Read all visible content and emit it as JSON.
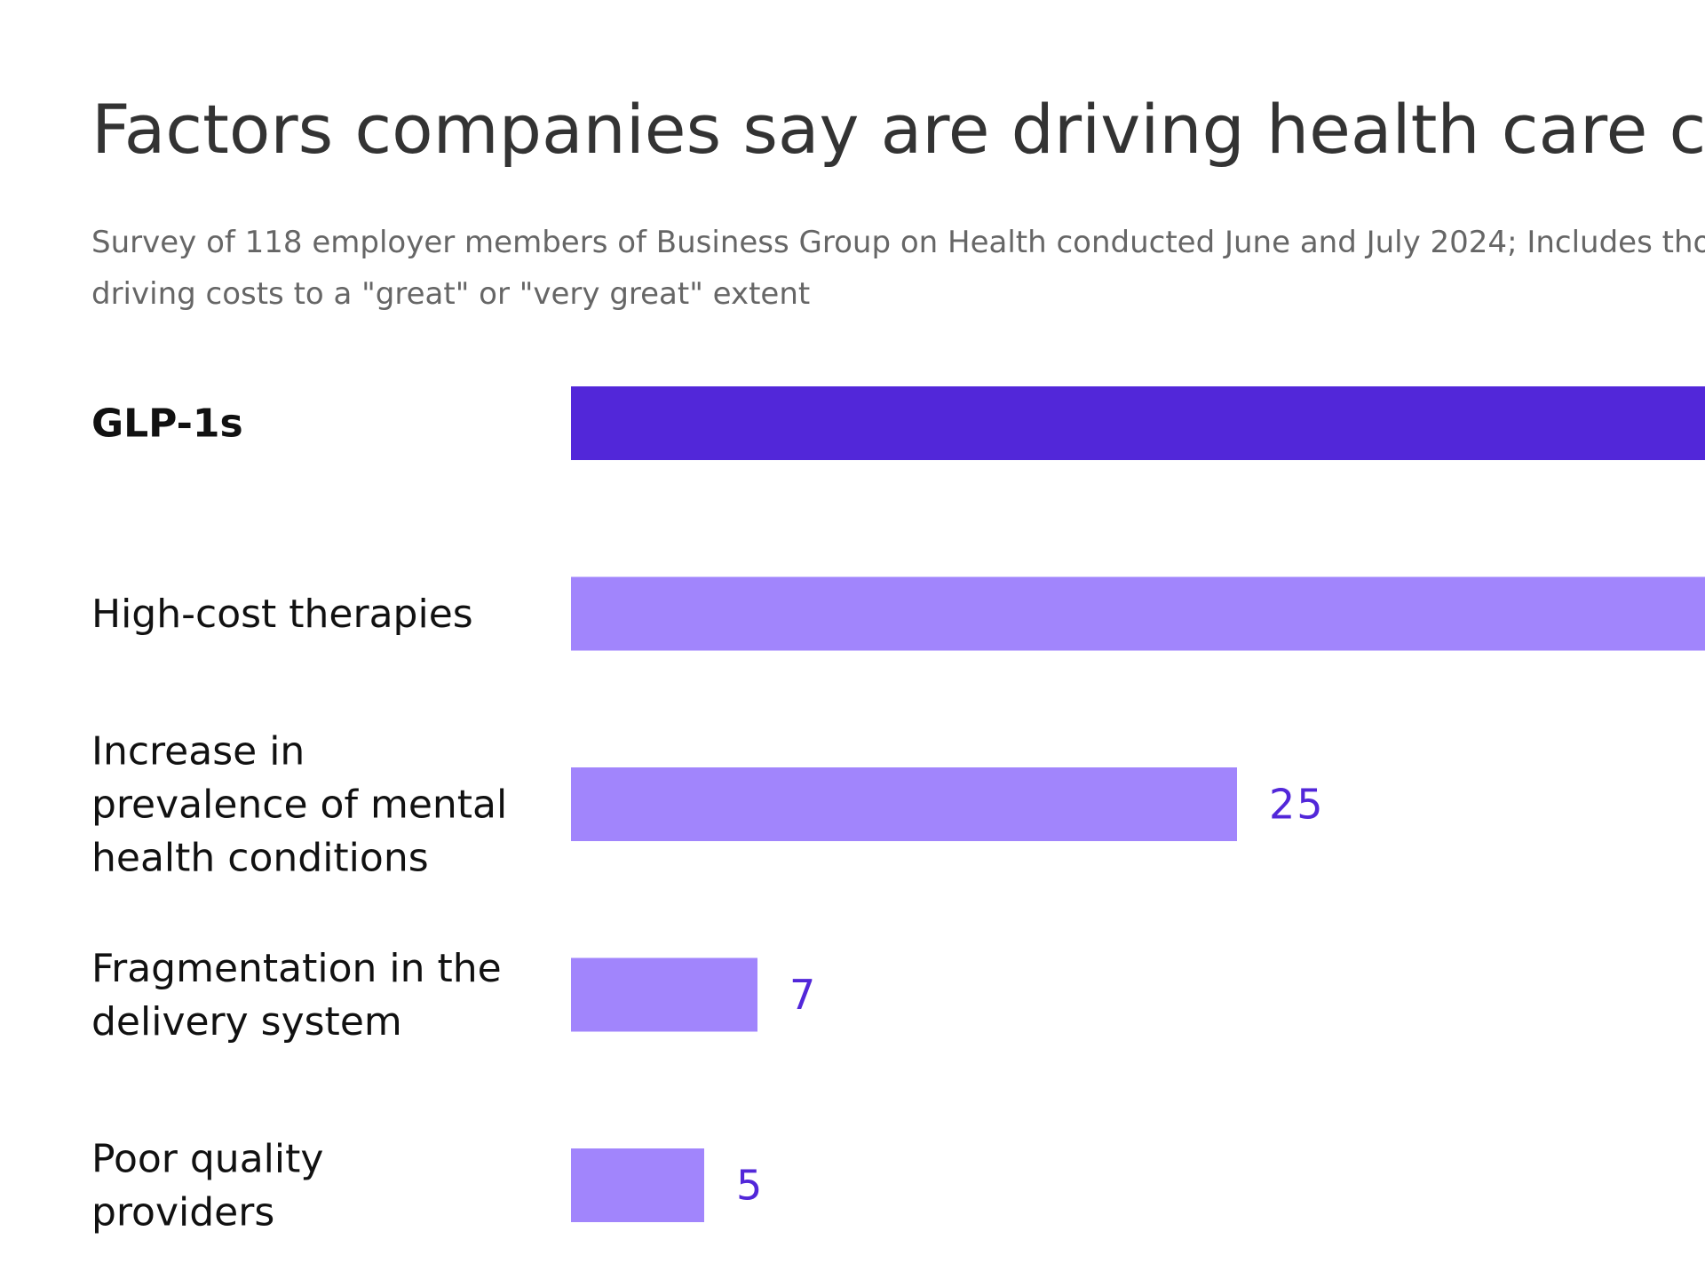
{
  "header": {
    "title": "Factors companies say are driving health care cos",
    "subtitle_line1": "Survey of 118 employer members of Business Group on Health conducted June and July 2024; Includes tho",
    "subtitle_line2": "driving costs to a \"great\" or \"very great\" extent"
  },
  "colors": {
    "highlight_bar": "#5227d9",
    "bar": "#a185fc",
    "value_label": "#5227d9",
    "label": "#111111"
  },
  "chart_data": {
    "type": "bar",
    "orientation": "horizontal",
    "title": "Factors companies say are driving health care cos",
    "subtitle": "Survey of 118 employer members of Business Group on Health conducted June and July 2024; Includes tho driving costs to a \"great\" or \"very great\" extent",
    "categories": [
      [
        "GLP-1s"
      ],
      [
        "High-cost therapies"
      ],
      [
        "Increase in",
        "prevalence of mental",
        "health conditions"
      ],
      [
        "Fragmentation in the",
        "delivery system"
      ],
      [
        "Poor quality",
        "providers"
      ]
    ],
    "values": [
      null,
      null,
      25,
      7,
      5
    ],
    "value_labels": [
      "",
      "",
      "25",
      "7",
      "5"
    ],
    "highlighted": [
      true,
      false,
      false,
      false,
      false
    ],
    "xlabel": "",
    "ylabel": "",
    "grid": false,
    "legend": "none"
  }
}
